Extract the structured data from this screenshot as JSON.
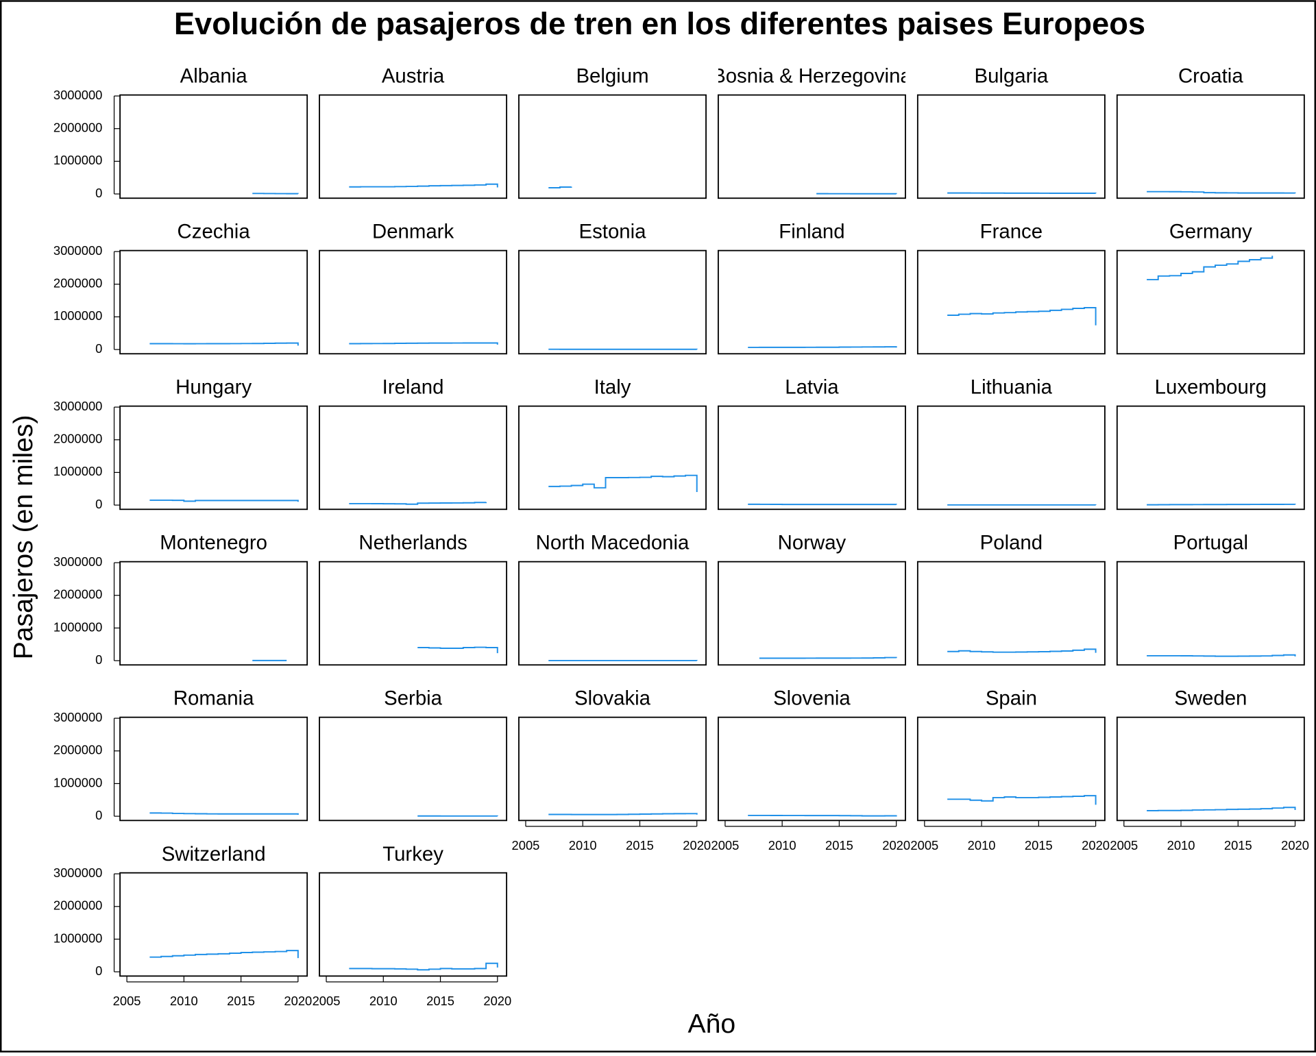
{
  "title": "Evolución de pasajeros de tren en los diferentes paises Europeos",
  "xlabel": "Año",
  "ylabel": "Pasajeros (en miles)",
  "x": [
    2007,
    2008,
    2009,
    2010,
    2011,
    2012,
    2013,
    2014,
    2015,
    2016,
    2017,
    2018,
    2019,
    2020
  ],
  "xlim": [
    2004.4,
    2020.8
  ],
  "ylim": [
    -130000,
    3030000
  ],
  "xticks": [
    2005,
    2010,
    2015,
    2020
  ],
  "yticks": [
    0,
    1000000,
    2000000,
    3000000
  ],
  "color": "#1e8fe8",
  "chart_data": [
    {
      "type": "step",
      "title": "Albania",
      "values": [
        null,
        null,
        null,
        null,
        null,
        null,
        null,
        null,
        null,
        15000,
        12000,
        10000,
        8000,
        5000
      ]
    },
    {
      "type": "step",
      "title": "Austria",
      "values": [
        215000,
        220000,
        220000,
        220000,
        225000,
        230000,
        240000,
        250000,
        255000,
        260000,
        265000,
        275000,
        300000,
        200000
      ]
    },
    {
      "type": "step",
      "title": "Belgium",
      "values": [
        190000,
        210000,
        220000,
        null,
        null,
        null,
        null,
        null,
        null,
        null,
        null,
        null,
        null,
        null
      ]
    },
    {
      "type": "step",
      "title": "Bosnia & Herzegovina",
      "values": [
        null,
        null,
        null,
        null,
        null,
        null,
        8000,
        7000,
        7000,
        6000,
        6000,
        5000,
        5000,
        4000
      ]
    },
    {
      "type": "step",
      "title": "Bulgaria",
      "values": [
        30000,
        30000,
        28000,
        27000,
        26000,
        25000,
        24000,
        24000,
        23000,
        22000,
        22000,
        21000,
        21000,
        18000
      ]
    },
    {
      "type": "step",
      "title": "Croatia",
      "values": [
        70000,
        70000,
        68000,
        65000,
        60000,
        40000,
        35000,
        33000,
        30000,
        30000,
        30000,
        29000,
        28000,
        20000
      ]
    },
    {
      "type": "step",
      "title": "Czechia",
      "values": [
        180000,
        180000,
        178000,
        177000,
        178000,
        180000,
        180000,
        181000,
        183000,
        185000,
        190000,
        195000,
        198000,
        120000
      ]
    },
    {
      "type": "step",
      "title": "Denmark",
      "values": [
        180000,
        182000,
        183000,
        185000,
        190000,
        193000,
        195000,
        197000,
        198000,
        199000,
        200000,
        200000,
        200000,
        150000
      ]
    },
    {
      "type": "step",
      "title": "Estonia",
      "values": [
        8000,
        7000,
        6000,
        6000,
        6000,
        6000,
        6000,
        6000,
        6000,
        6000,
        6000,
        6000,
        6000,
        4000
      ]
    },
    {
      "type": "step",
      "title": "Finland",
      "values": [
        65000,
        67000,
        66000,
        66000,
        67000,
        68000,
        69000,
        70000,
        74000,
        76000,
        78000,
        80000,
        82000,
        60000
      ]
    },
    {
      "type": "step",
      "title": "France",
      "values": [
        1050000,
        1080000,
        1100000,
        1090000,
        1120000,
        1130000,
        1150000,
        1160000,
        1170000,
        1200000,
        1230000,
        1260000,
        1280000,
        740000
      ]
    },
    {
      "type": "step",
      "title": "Germany",
      "values": [
        2140000,
        2250000,
        2260000,
        2330000,
        2380000,
        2530000,
        2580000,
        2620000,
        2700000,
        2750000,
        2800000,
        2870000,
        null,
        null
      ]
    },
    {
      "type": "step",
      "title": "Hungary",
      "values": [
        150000,
        150000,
        145000,
        120000,
        140000,
        140000,
        140000,
        140000,
        140000,
        140000,
        140000,
        140000,
        140000,
        100000
      ]
    },
    {
      "type": "step",
      "title": "Ireland",
      "values": [
        45000,
        45000,
        44000,
        40000,
        38000,
        28000,
        60000,
        62000,
        64000,
        66000,
        70000,
        80000,
        90000,
        null
      ]
    },
    {
      "type": "step",
      "title": "Italy",
      "values": [
        570000,
        580000,
        600000,
        640000,
        530000,
        840000,
        840000,
        845000,
        850000,
        880000,
        870000,
        890000,
        910000,
        400000
      ]
    },
    {
      "type": "step",
      "title": "Latvia",
      "values": [
        25000,
        24000,
        22000,
        20000,
        20000,
        20000,
        20000,
        20000,
        20000,
        20000,
        20000,
        20000,
        20000,
        15000
      ]
    },
    {
      "type": "step",
      "title": "Lithuania",
      "values": [
        5000,
        5000,
        5000,
        5000,
        5000,
        5000,
        5000,
        5000,
        5000,
        5000,
        5000,
        5000,
        5000,
        3000
      ]
    },
    {
      "type": "step",
      "title": "Luxembourg",
      "values": [
        10000,
        12000,
        15000,
        15000,
        16000,
        17000,
        18000,
        19000,
        20000,
        21000,
        22000,
        23000,
        24000,
        16000
      ]
    },
    {
      "type": "step",
      "title": "Montenegro",
      "values": [
        null,
        null,
        null,
        null,
        null,
        null,
        null,
        null,
        null,
        5000,
        5000,
        5000,
        5000,
        null
      ]
    },
    {
      "type": "step",
      "title": "Netherlands",
      "values": [
        null,
        null,
        null,
        null,
        null,
        null,
        400000,
        390000,
        380000,
        380000,
        400000,
        410000,
        400000,
        230000
      ]
    },
    {
      "type": "step",
      "title": "North Macedonia",
      "values": [
        3000,
        3000,
        3000,
        3000,
        3000,
        3000,
        3000,
        3000,
        3000,
        3000,
        3000,
        3000,
        3000,
        2000
      ]
    },
    {
      "type": "step",
      "title": "Norway",
      "values": [
        null,
        75000,
        75000,
        76000,
        76000,
        77000,
        78000,
        78000,
        78000,
        79000,
        80000,
        85000,
        95000,
        80000
      ]
    },
    {
      "type": "step",
      "title": "Poland",
      "values": [
        280000,
        300000,
        280000,
        270000,
        260000,
        260000,
        265000,
        270000,
        275000,
        285000,
        295000,
        320000,
        350000,
        240000
      ]
    },
    {
      "type": "step",
      "title": "Portugal",
      "values": [
        150000,
        150000,
        150000,
        148000,
        145000,
        140000,
        135000,
        135000,
        138000,
        140000,
        145000,
        160000,
        175000,
        130000
      ]
    },
    {
      "type": "step",
      "title": "Romania",
      "values": [
        100000,
        95000,
        85000,
        80000,
        75000,
        72000,
        70000,
        70000,
        70000,
        70000,
        70000,
        70000,
        70000,
        45000
      ]
    },
    {
      "type": "step",
      "title": "Serbia",
      "values": [
        null,
        null,
        null,
        null,
        null,
        null,
        8000,
        7000,
        6000,
        6000,
        6000,
        6000,
        6000,
        4000
      ]
    },
    {
      "type": "step",
      "title": "Slovakia",
      "values": [
        55000,
        55000,
        52000,
        52000,
        52000,
        52000,
        55000,
        60000,
        65000,
        70000,
        75000,
        78000,
        80000,
        50000
      ]
    },
    {
      "type": "step",
      "title": "Slovenia",
      "values": [
        25000,
        25000,
        23000,
        22000,
        22000,
        20000,
        20000,
        20000,
        18000,
        15000,
        10000,
        10000,
        12000,
        30000
      ]
    },
    {
      "type": "step",
      "title": "Spain",
      "values": [
        520000,
        520000,
        490000,
        470000,
        570000,
        590000,
        570000,
        570000,
        580000,
        590000,
        600000,
        610000,
        630000,
        350000
      ]
    },
    {
      "type": "step",
      "title": "Sweden",
      "values": [
        170000,
        175000,
        175000,
        180000,
        190000,
        195000,
        200000,
        210000,
        215000,
        220000,
        230000,
        250000,
        270000,
        190000
      ]
    },
    {
      "type": "step",
      "title": "Switzerland",
      "values": [
        450000,
        470000,
        490000,
        510000,
        530000,
        540000,
        550000,
        570000,
        590000,
        600000,
        610000,
        620000,
        650000,
        420000
      ]
    },
    {
      "type": "step",
      "title": "Turkey",
      "values": [
        100000,
        100000,
        95000,
        95000,
        90000,
        80000,
        60000,
        80000,
        100000,
        90000,
        90000,
        100000,
        260000,
        130000
      ]
    }
  ]
}
